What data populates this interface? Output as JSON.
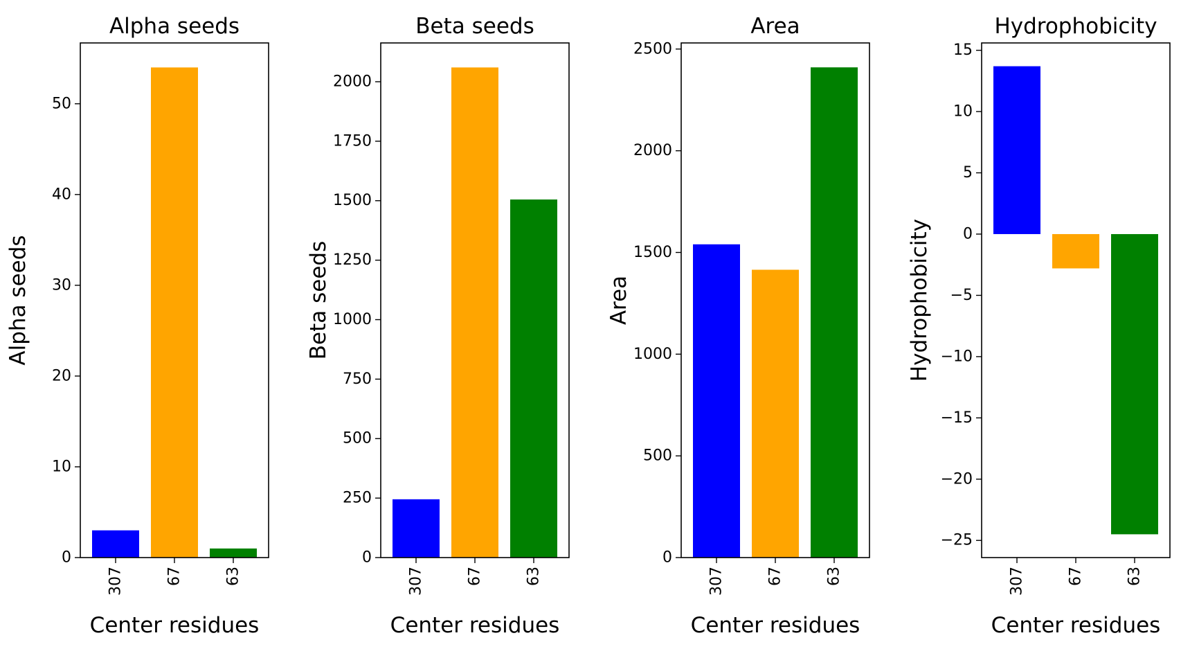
{
  "chart_data": [
    {
      "type": "bar",
      "title": "Alpha seeds",
      "xlabel": "Center residues",
      "ylabel": "Alpha seeds",
      "categories": [
        "307",
        "67",
        "63"
      ],
      "values": [
        3,
        54,
        1
      ],
      "colors": [
        "#0000ff",
        "#ffa500",
        "#008000"
      ],
      "ylim": [
        0,
        56.7
      ],
      "yticks": [
        0,
        10,
        20,
        30,
        40,
        50
      ],
      "ytick_labels": [
        "0",
        "10",
        "20",
        "30",
        "40",
        "50"
      ]
    },
    {
      "type": "bar",
      "title": "Beta seeds",
      "xlabel": "Center residues",
      "ylabel": "Beta seeds",
      "categories": [
        "307",
        "67",
        "63"
      ],
      "values": [
        245,
        2060,
        1505
      ],
      "colors": [
        "#0000ff",
        "#ffa500",
        "#008000"
      ],
      "ylim": [
        0,
        2163
      ],
      "yticks": [
        0,
        250,
        500,
        750,
        1000,
        1250,
        1500,
        1750,
        2000
      ],
      "ytick_labels": [
        "0",
        "250",
        "500",
        "750",
        "1000",
        "1250",
        "1500",
        "1750",
        "2000"
      ]
    },
    {
      "type": "bar",
      "title": "Area",
      "xlabel": "Center residues",
      "ylabel": "Area",
      "categories": [
        "307",
        "67",
        "63"
      ],
      "values": [
        1540,
        1415,
        2410
      ],
      "colors": [
        "#0000ff",
        "#ffa500",
        "#008000"
      ],
      "ylim": [
        0,
        2530
      ],
      "yticks": [
        0,
        500,
        1000,
        1500,
        2000,
        2500
      ],
      "ytick_labels": [
        "0",
        "500",
        "1000",
        "1500",
        "2000",
        "2500"
      ]
    },
    {
      "type": "bar",
      "title": "Hydrophobicity",
      "xlabel": "Center residues",
      "ylabel": "Hydrophobicity",
      "categories": [
        "307",
        "67",
        "63"
      ],
      "values": [
        13.7,
        -2.8,
        -24.5
      ],
      "colors": [
        "#0000ff",
        "#ffa500",
        "#008000"
      ],
      "ylim": [
        -26.4,
        15.6
      ],
      "yticks": [
        15,
        10,
        5,
        0,
        -5,
        -10,
        -15,
        -20,
        -25
      ],
      "ytick_labels": [
        "15",
        "10",
        "5",
        "0",
        "−5",
        "−10",
        "−15",
        "−20",
        "−25"
      ]
    }
  ]
}
